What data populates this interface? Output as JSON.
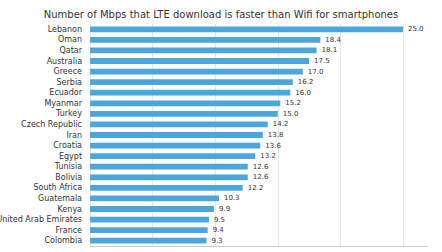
{
  "chart_data": {
    "type": "bar",
    "orientation": "horizontal",
    "title": "Number of Mbps that LTE download is faster than Wifi for smartphones",
    "categories": [
      "Colombia",
      "France",
      "United Arab Emirates",
      "Kenya",
      "Guatemala",
      "South Africa",
      "Bolivia",
      "Tunisia",
      "Egypt",
      "Croatia",
      "Iran",
      "Czech Republic",
      "Turkey",
      "Myanmar",
      "Ecuador",
      "Serbia",
      "Greece",
      "Australia",
      "Qatar",
      "Oman",
      "Lebanon"
    ],
    "values": [
      9.3,
      9.4,
      9.5,
      9.9,
      10.3,
      12.2,
      12.6,
      12.6,
      13.2,
      13.6,
      13.8,
      14.2,
      15.0,
      15.2,
      16.0,
      16.2,
      17.0,
      17.5,
      18.1,
      18.4,
      25.0
    ],
    "value_labels": [
      "9.3",
      "9.4",
      "9.5",
      "9.9",
      "10.3",
      "12.2",
      "12.6",
      "12.6",
      "13.2",
      "13.6",
      "13.8",
      "14.2",
      "15.0",
      "15.2",
      "16.0",
      "16.2",
      "17.0",
      "17.5",
      "18.1",
      "18.4",
      "25.0"
    ],
    "color": "#4da6d9",
    "xlim": [
      0,
      27
    ],
    "xticks": [
      0,
      5,
      10,
      15,
      20,
      25
    ],
    "grid": true,
    "data_labels": true,
    "tick_labels": "y"
  }
}
